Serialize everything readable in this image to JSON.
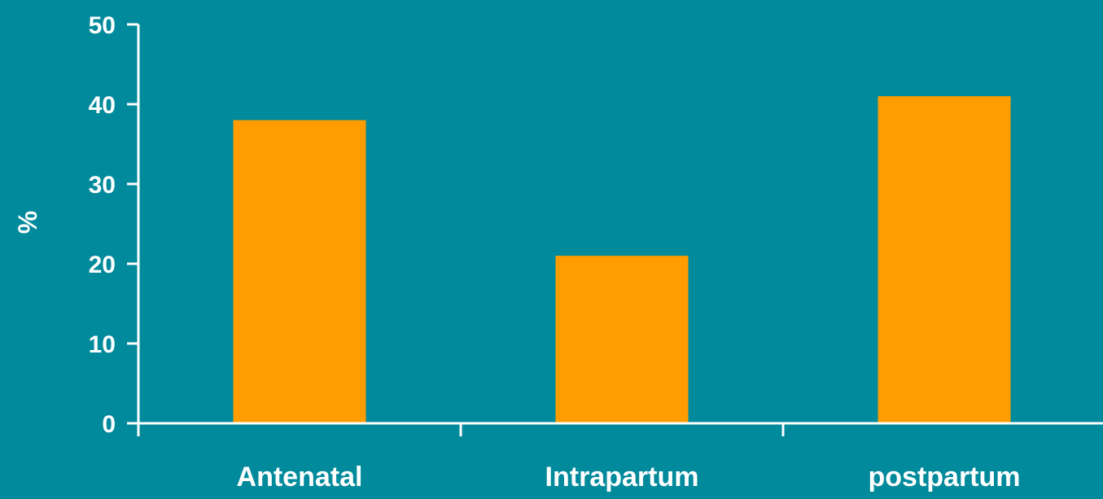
{
  "chart_data": {
    "type": "bar",
    "categories": [
      "Antenatal",
      "Intrapartum",
      "postpartum"
    ],
    "values": [
      38,
      21,
      41
    ],
    "ylabel": "%",
    "xlabel": "",
    "title": "",
    "ylim": [
      0,
      50
    ],
    "yticks": [
      "0",
      "10",
      "20",
      "30",
      "40",
      "50"
    ],
    "grid": false,
    "legend": "none"
  },
  "colors": {
    "background": "#008a9b",
    "bar": "#ff9c00",
    "axis": "#ffffff",
    "text": "#ffffff"
  }
}
